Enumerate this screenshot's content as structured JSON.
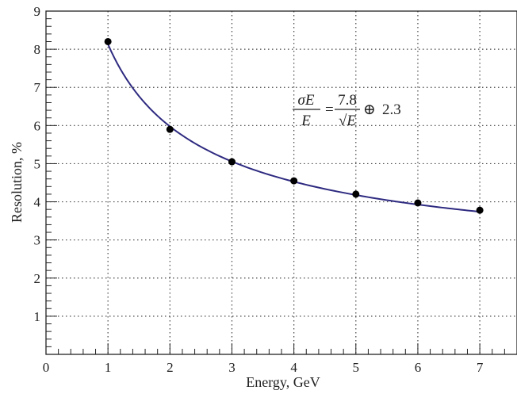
{
  "chart_data": {
    "type": "scatter",
    "xlabel": "Energy, GeV",
    "ylabel": "Resolution, %",
    "xlim": [
      0,
      7.6
    ],
    "ylim": [
      0,
      9
    ],
    "x_ticks": [
      "0",
      "1",
      "2",
      "3",
      "4",
      "5",
      "6",
      "7"
    ],
    "y_ticks": [
      "1",
      "2",
      "3",
      "4",
      "5",
      "6",
      "7",
      "8",
      "9"
    ],
    "grid": "dotted",
    "series": [
      {
        "points": [
          {
            "x": 1,
            "y": 8.2
          },
          {
            "x": 2,
            "y": 5.9
          },
          {
            "x": 3,
            "y": 5.05
          },
          {
            "x": 4,
            "y": 4.55
          },
          {
            "x": 5,
            "y": 4.2
          },
          {
            "x": 6,
            "y": 3.97
          },
          {
            "x": 7,
            "y": 3.78
          }
        ],
        "color": "#000000"
      }
    ],
    "fit_curve": {
      "a": 7.8,
      "b": 2.3,
      "x_range": [
        1,
        7
      ],
      "color": "#2e2a80"
    },
    "annotation": {
      "lhs_num": "σE",
      "lhs_den": "E",
      "eq": "=",
      "rhs_num": "7.8",
      "rhs_den": "√E",
      "oplus": "⊕",
      "const": "2.3"
    }
  }
}
